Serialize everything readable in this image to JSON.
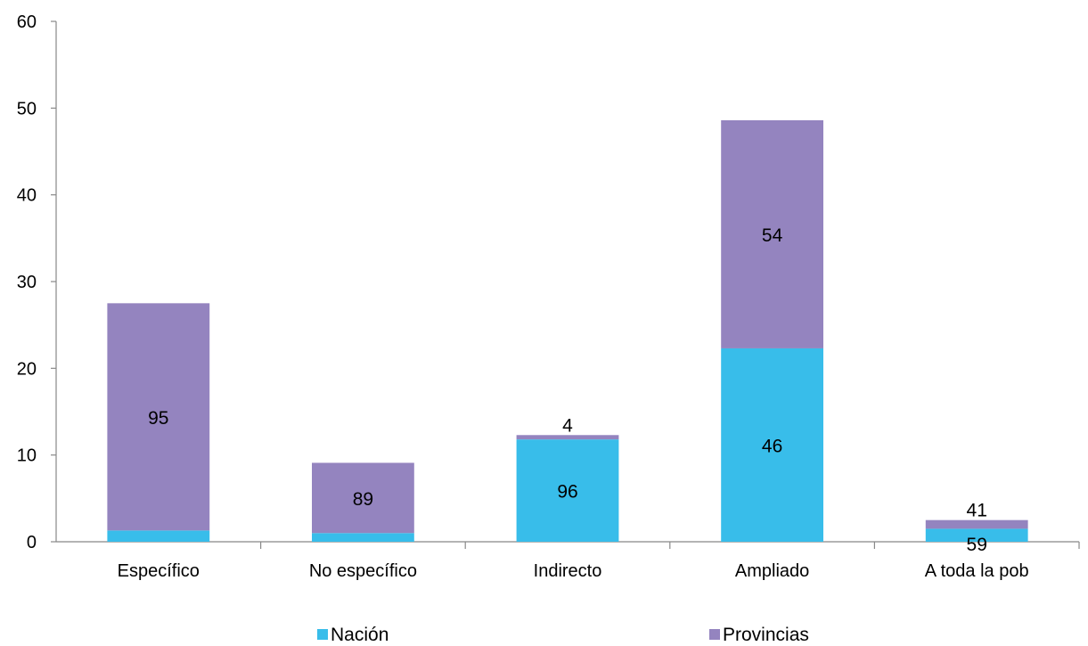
{
  "chart_data": {
    "type": "bar",
    "stacked": true,
    "categories": [
      "Específico",
      "No específico",
      "Indirecto",
      "Ampliado",
      "A toda la pob"
    ],
    "series": [
      {
        "name": "Nación",
        "color": "#38bdea",
        "values": [
          1.3,
          1.0,
          11.8,
          22.3,
          1.5
        ],
        "labels": [
          "",
          "",
          "96",
          "46",
          "59"
        ]
      },
      {
        "name": "Provincias",
        "color": "#9484bf",
        "values": [
          26.2,
          8.1,
          0.5,
          26.3,
          1.0
        ],
        "labels": [
          "95",
          "89",
          "4",
          "54",
          "41"
        ]
      }
    ],
    "ylim": [
      0,
      60
    ],
    "yticks": [
      0,
      10,
      20,
      30,
      40,
      50,
      60
    ],
    "grid": false,
    "legend": "bottom"
  }
}
